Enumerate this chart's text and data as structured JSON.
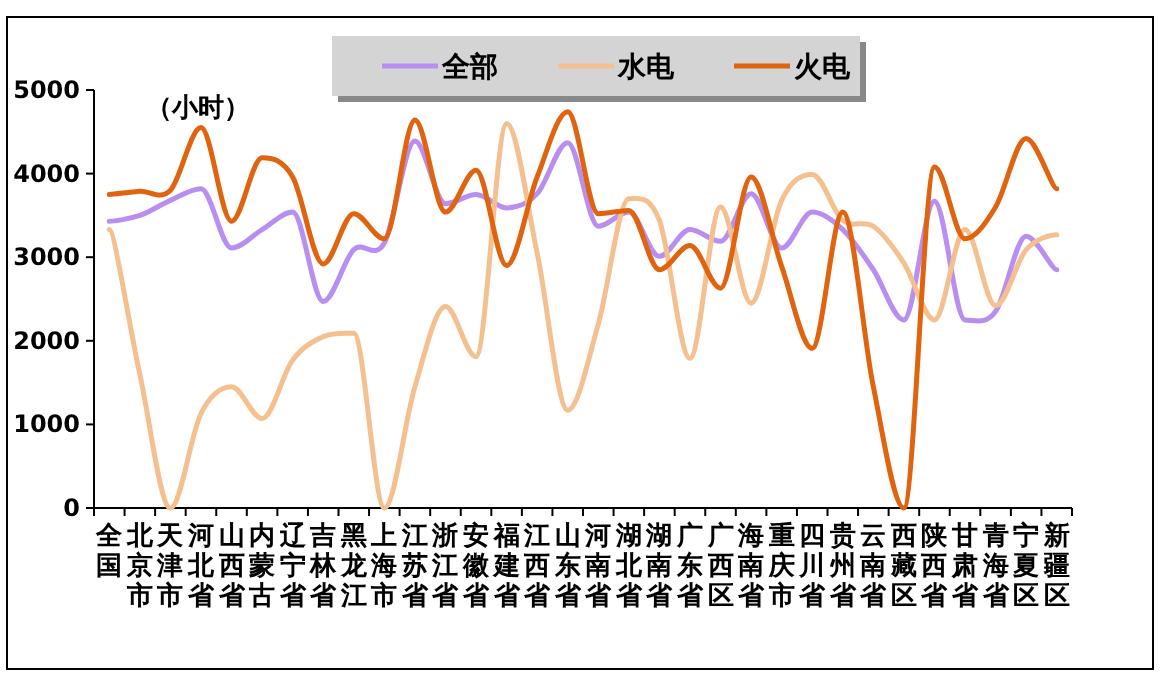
{
  "chart_data": {
    "type": "line",
    "categories": [
      "全国",
      "北京市",
      "天津市",
      "河北省",
      "山西省",
      "内蒙古",
      "辽宁省",
      "吉林省",
      "黑龙江",
      "上海市",
      "江苏省",
      "浙江省",
      "安徽省",
      "福建省",
      "江西省",
      "山东省",
      "河南省",
      "湖北省",
      "湖南省",
      "广东省",
      "广西区",
      "海南省",
      "重庆市",
      "四川省",
      "贵州省",
      "云南省",
      "西藏区",
      "陕西省",
      "甘肃省",
      "青海省",
      "宁夏区",
      "新疆区"
    ],
    "series": [
      {
        "name": "全部",
        "color": "#b88ef0",
        "values": [
          3430,
          3500,
          3680,
          3820,
          3110,
          3330,
          3540,
          2470,
          3090,
          3170,
          4390,
          3640,
          3750,
          3590,
          3760,
          4370,
          3370,
          3540,
          3010,
          3330,
          3190,
          3760,
          3110,
          3540,
          3330,
          2850,
          2250,
          3670,
          2250,
          2350,
          3250,
          2850
        ]
      },
      {
        "name": "水电",
        "color": "#f5c08f",
        "values": [
          3330,
          1600,
          0,
          1130,
          1450,
          1070,
          1770,
          2050,
          2090,
          0,
          1450,
          2410,
          1810,
          4600,
          3050,
          1170,
          2200,
          3700,
          3440,
          1790,
          3600,
          2450,
          3680,
          3990,
          3440,
          3370,
          2930,
          2250,
          3330,
          2420,
          3090,
          3270
        ]
      },
      {
        "name": "火电",
        "color": "#e0630f",
        "values": [
          3750,
          3790,
          3800,
          4550,
          3430,
          4190,
          3960,
          2920,
          3520,
          3220,
          4640,
          3540,
          4040,
          2900,
          3960,
          4740,
          3520,
          3560,
          2850,
          3140,
          2630,
          3960,
          2890,
          1910,
          3540,
          1450,
          0,
          4080,
          3220,
          3600,
          4420,
          3820
        ]
      }
    ],
    "ylim": [
      0,
      5000
    ],
    "yticks": [
      0,
      1000,
      2000,
      3000,
      4000,
      5000
    ],
    "annotations": [
      "（小时）"
    ],
    "legend": "top",
    "grid": false
  }
}
